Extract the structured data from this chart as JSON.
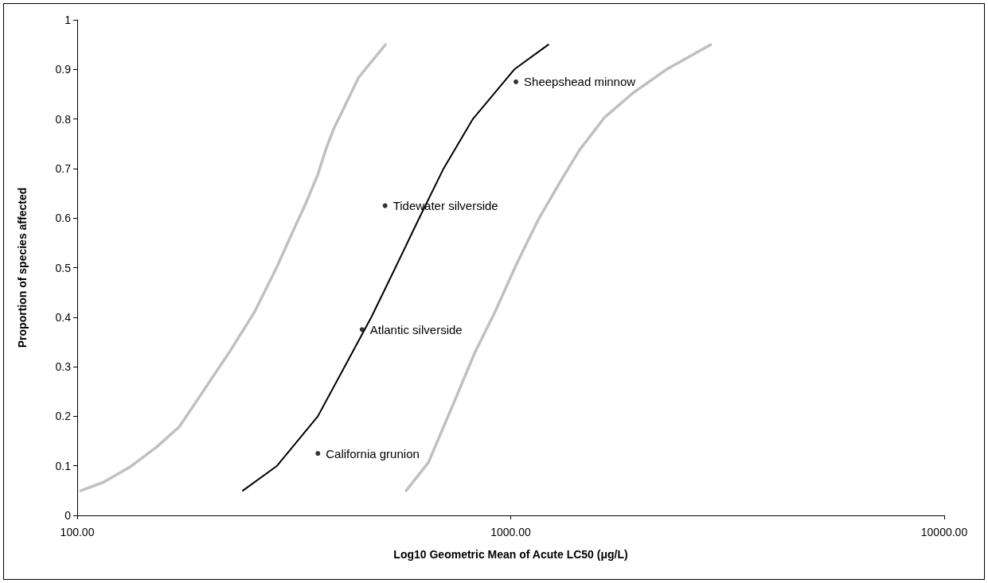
{
  "chart_data": {
    "type": "line",
    "xlabel": "Log10 Geometric Mean of Acute LC50 (μg/L)",
    "ylabel": "Proportion of species affected",
    "log": "x",
    "xlim": [
      100,
      10000
    ],
    "xticks": [
      {
        "value": 100,
        "label": "100.00"
      },
      {
        "value": 1000,
        "label": "1000.00"
      },
      {
        "value": 10000,
        "label": "10000.00"
      }
    ],
    "ylim": [
      0,
      1
    ],
    "yticks": [
      0,
      0.1,
      0.2,
      0.3,
      0.4,
      0.5,
      0.6,
      0.7,
      0.8,
      0.9,
      1
    ],
    "grid": false,
    "series": [
      {
        "color": "#c0c0c0",
        "marker": "none",
        "x": [
          102,
          115,
          132,
          152,
          172,
          193,
          225,
          257,
          289,
          314,
          336,
          359,
          374,
          390,
          446,
          514
        ],
        "values": [
          0.05,
          0.067,
          0.097,
          0.137,
          0.179,
          0.244,
          0.331,
          0.412,
          0.502,
          0.572,
          0.628,
          0.688,
          0.737,
          0.779,
          0.884,
          0.95
        ]
      },
      {
        "color": "#000000",
        "marker": "none",
        "x": [
          241,
          289,
          359,
          477,
          542,
          615,
          700,
          818,
          1019,
          1221
        ],
        "values": [
          0.05,
          0.1,
          0.2,
          0.4,
          0.5,
          0.6,
          0.7,
          0.8,
          0.9,
          0.95
        ]
      },
      {
        "color": "#c0c0c0",
        "marker": "none",
        "x": [
          574,
          646,
          738,
          829,
          917,
          1030,
          1158,
          1302,
          1440,
          1645,
          1911,
          2297,
          2892
        ],
        "values": [
          0.05,
          0.107,
          0.226,
          0.331,
          0.408,
          0.506,
          0.597,
          0.674,
          0.737,
          0.803,
          0.852,
          0.901,
          0.95
        ]
      },
      {
        "type": "scatter",
        "color": "#000000",
        "marker": "circle",
        "x": [
          359,
          454,
          513,
          1028
        ],
        "values": [
          0.125,
          0.375,
          0.625,
          0.875
        ]
      }
    ],
    "annotations": [
      {
        "text": "California grunion",
        "x": 359,
        "y": 0.125
      },
      {
        "text": "Atlantic silverside",
        "x": 454,
        "y": 0.375
      },
      {
        "text": "Tidewater silverside",
        "x": 513,
        "y": 0.625
      },
      {
        "text": "Sheepshead minnow",
        "x": 1028,
        "y": 0.875
      }
    ]
  }
}
